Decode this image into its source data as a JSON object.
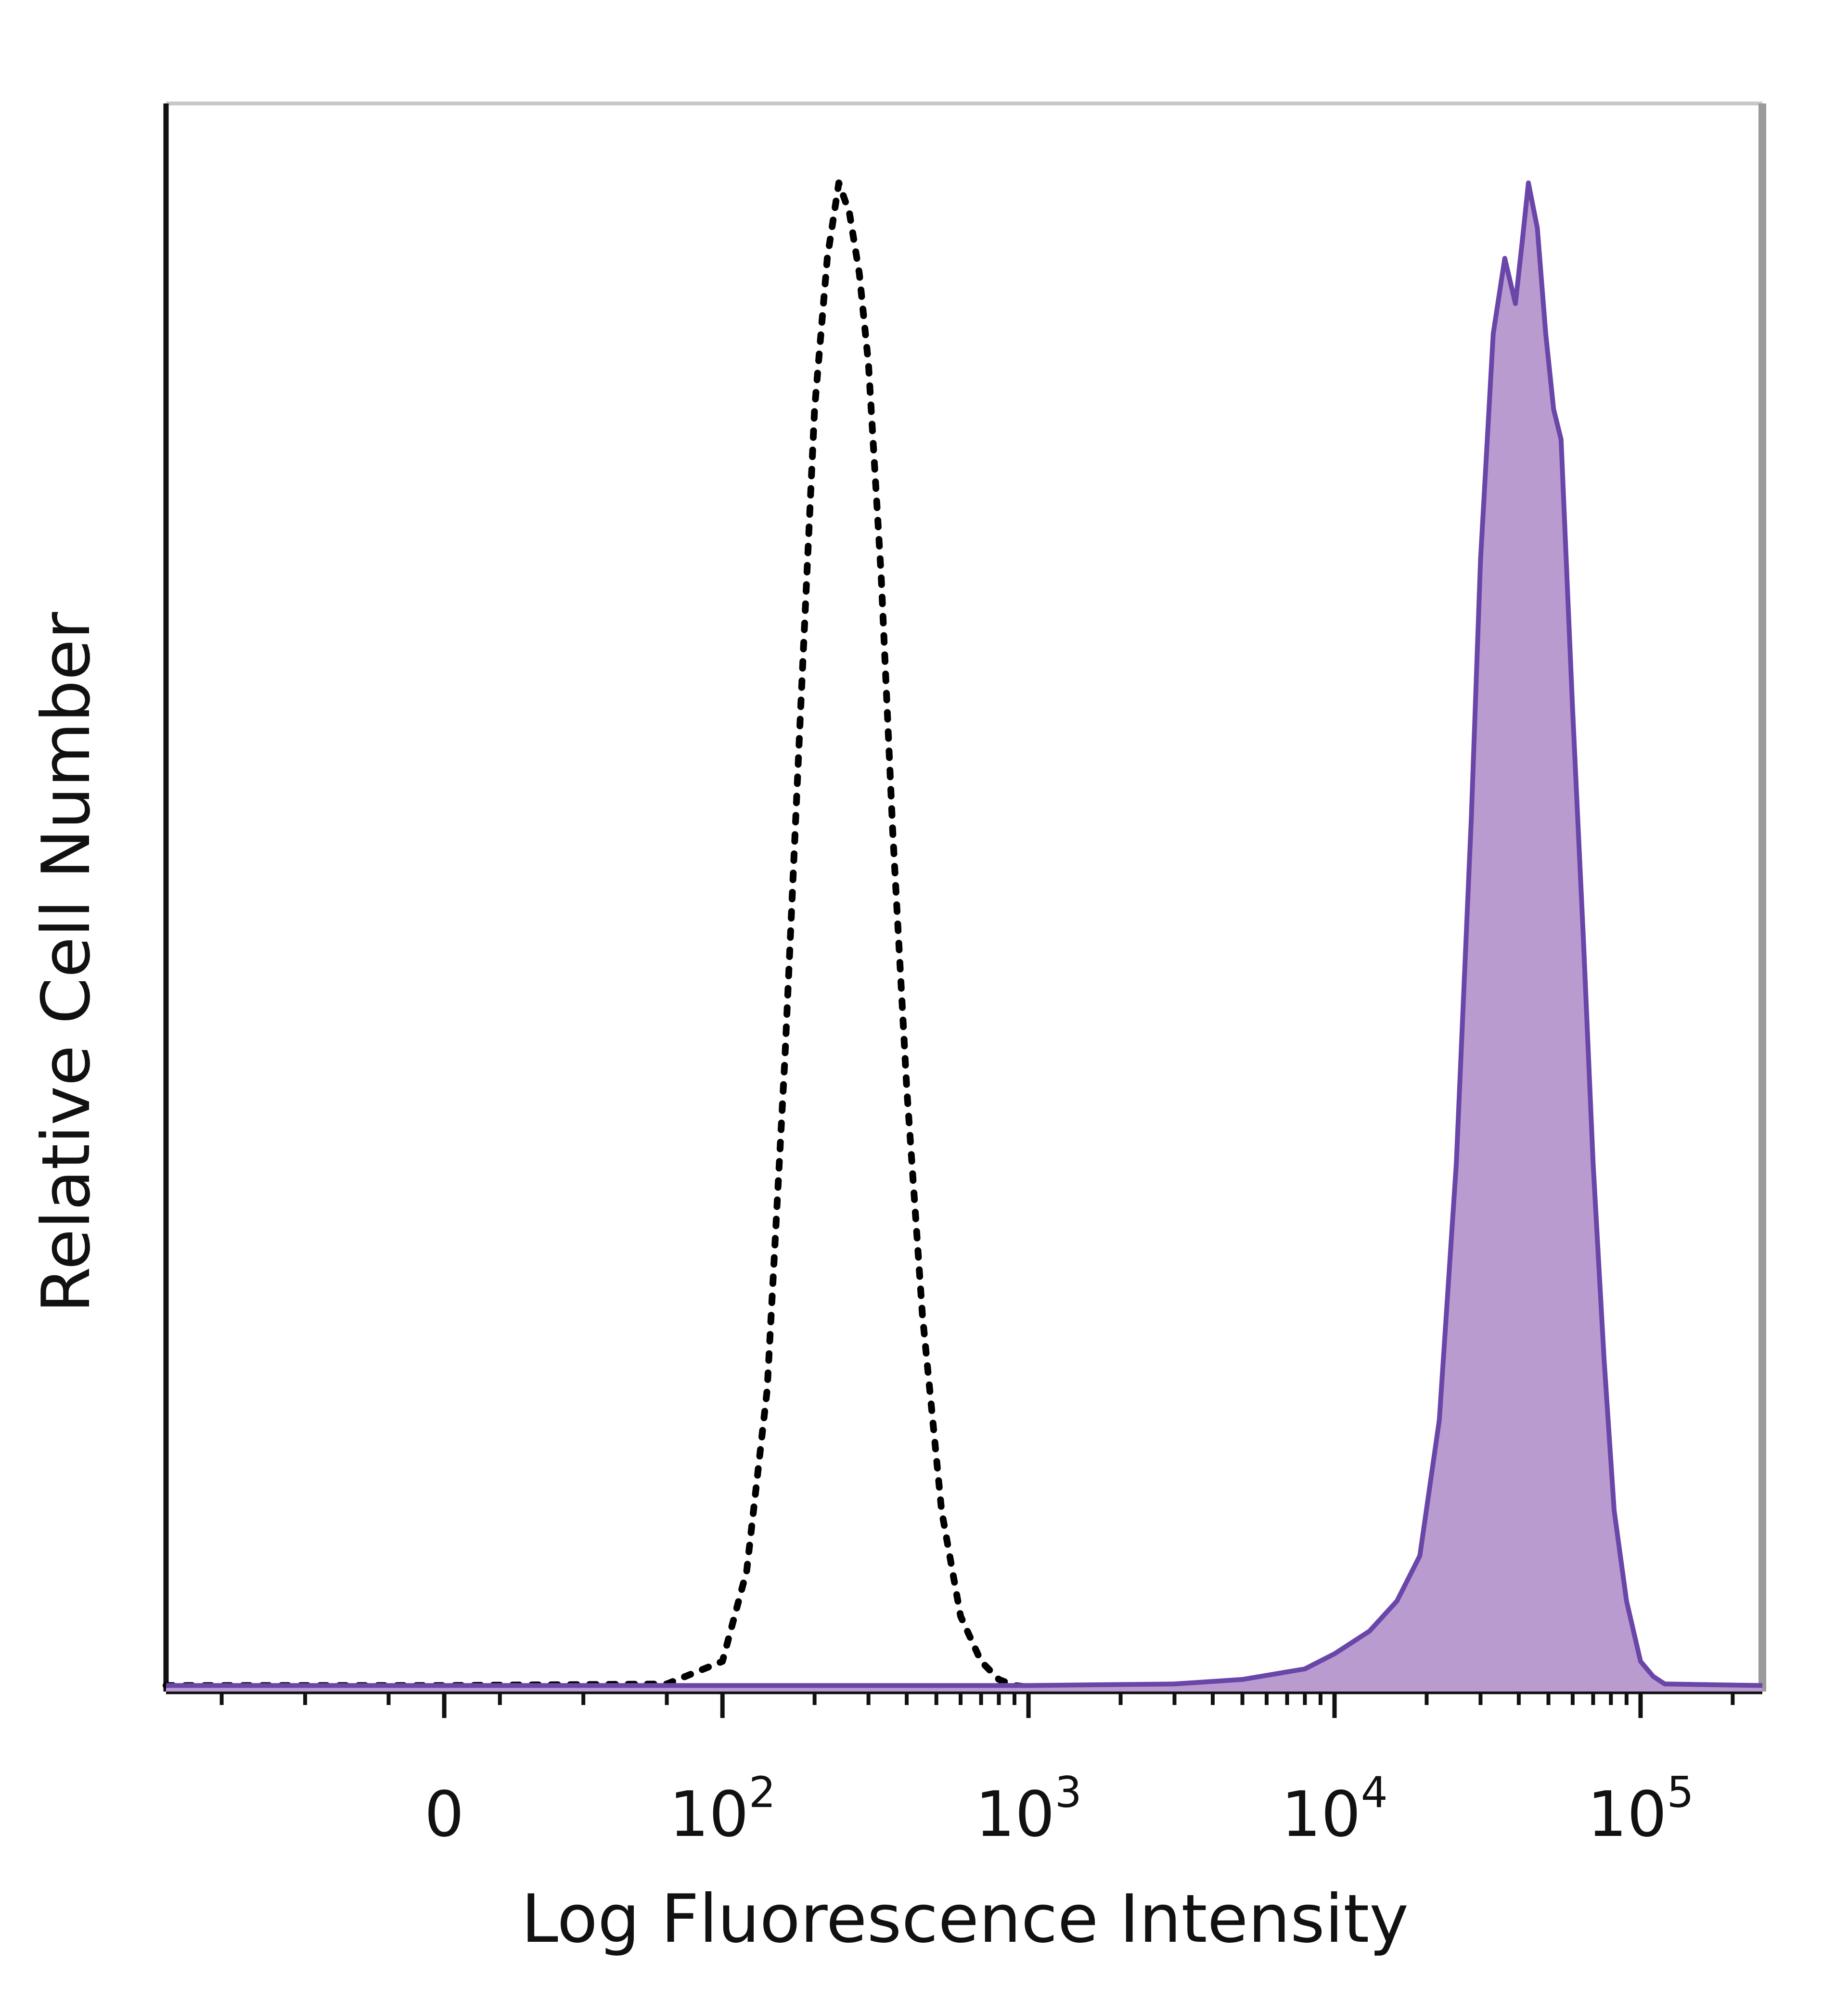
{
  "chart_data": {
    "type": "area",
    "title": "",
    "xlabel": "Log Fluorescence Intensity",
    "ylabel": "Relative Cell Number",
    "x_scale": "biexponential",
    "xlim": [
      -100,
      250000
    ],
    "ylim": [
      0,
      100
    ],
    "x_ticks": [
      {
        "value": 0,
        "base": "0",
        "exp": ""
      },
      {
        "value": 100,
        "base": "10",
        "exp": "2"
      },
      {
        "value": 1000,
        "base": "10",
        "exp": "3"
      },
      {
        "value": 10000,
        "base": "10",
        "exp": "4"
      },
      {
        "value": 100000,
        "base": "10",
        "exp": "5"
      }
    ],
    "grid": false,
    "legend": "none",
    "series": [
      {
        "style": "dotted",
        "color": "#000000",
        "fill": "none",
        "x": [
          -100,
          0,
          80,
          100,
          120,
          140,
          160,
          180,
          200,
          220,
          240,
          260,
          280,
          300,
          330,
          360,
          400,
          450,
          520,
          600,
          700,
          800,
          900,
          1000,
          2000,
          10000,
          250000
        ],
        "y": [
          0.4,
          0.4,
          0.5,
          2,
          8,
          20,
          42,
          65,
          85,
          95,
          100,
          98,
          94,
          88,
          74,
          57,
          40,
          25,
          12,
          5,
          2,
          0.8,
          0.4,
          0.3,
          0.3,
          0.3,
          0.3
        ]
      },
      {
        "style": "solid",
        "color": "#6a46a8",
        "fill": "#b99bd0",
        "x": [
          -100,
          0,
          1000,
          3000,
          5000,
          8000,
          10000,
          13000,
          16000,
          19000,
          22000,
          25000,
          28000,
          30000,
          33000,
          36000,
          39000,
          41000,
          43000,
          46000,
          49000,
          52000,
          55000,
          60000,
          65000,
          70000,
          76000,
          82000,
          90000,
          100000,
          110000,
          120000,
          250000
        ],
        "y": [
          0.4,
          0.4,
          0.4,
          0.5,
          0.8,
          1.5,
          2.5,
          4,
          6,
          9,
          18,
          35,
          58,
          75,
          90,
          95,
          92,
          96,
          100,
          97,
          90,
          85,
          83,
          65,
          50,
          35,
          22,
          12,
          6,
          2,
          1,
          0.5,
          0.4
        ]
      }
    ]
  }
}
